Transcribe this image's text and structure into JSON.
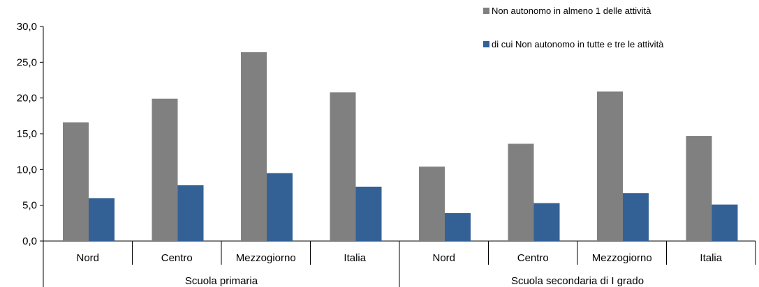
{
  "chart_data": {
    "type": "bar",
    "groups": [
      {
        "label": "Scuola primaria",
        "categories": [
          "Nord",
          "Centro",
          "Mezzogiorno",
          "Italia"
        ]
      },
      {
        "label": "Scuola secondaria di I grado",
        "categories": [
          "Nord",
          "Centro",
          "Mezzogiorno",
          "Italia"
        ]
      }
    ],
    "series": [
      {
        "name": "Non autonomo in almeno 1 delle attività",
        "color": "#808080",
        "values": [
          16.6,
          19.9,
          26.4,
          20.8,
          10.4,
          13.6,
          20.9,
          14.7
        ]
      },
      {
        "name": "di cui Non autonomo in tutte e tre le attività",
        "color": "#336196",
        "values": [
          6.0,
          7.8,
          9.5,
          7.6,
          3.9,
          5.3,
          6.7,
          5.1
        ]
      }
    ],
    "ylim": [
      0,
      30
    ],
    "yticks": [
      "0,0",
      "5,0",
      "10,0",
      "15,0",
      "20,0",
      "25,0",
      "30,0"
    ],
    "title": "",
    "xlabel": "",
    "ylabel": "",
    "legend_position": "top-right",
    "grid": false
  }
}
